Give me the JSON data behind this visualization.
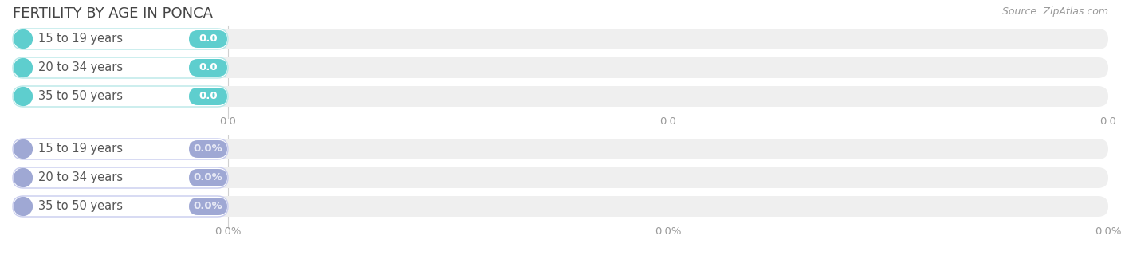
{
  "title": "FERTILITY BY AGE IN PONCA",
  "source_text": "Source: ZipAtlas.com",
  "top_group": {
    "labels": [
      "15 to 19 years",
      "20 to 34 years",
      "35 to 50 years"
    ],
    "values": [
      0.0,
      0.0,
      0.0
    ],
    "bar_color": "#5ecece",
    "label_border": "#b8e8e8",
    "value_text_color": "#ffffff",
    "label_text_color": "#555555",
    "left_circle_color": "#5ecece",
    "tick_labels": [
      "0.0",
      "0.0",
      "0.0"
    ]
  },
  "bottom_group": {
    "labels": [
      "15 to 19 years",
      "20 to 34 years",
      "35 to 50 years"
    ],
    "values": [
      0.0,
      0.0,
      0.0
    ],
    "bar_color": "#9fa8d4",
    "label_border": "#c8ccee",
    "value_text_color": "#e8eaf6",
    "label_text_color": "#555555",
    "left_circle_color": "#9fa8d4",
    "tick_labels": [
      "0.0%",
      "0.0%",
      "0.0%"
    ]
  },
  "background_color": "#ffffff",
  "bar_bg_color": "#efefef",
  "axis_line_color": "#d0d0d0",
  "tick_label_color": "#999999",
  "title_color": "#444444",
  "source_color": "#999999"
}
